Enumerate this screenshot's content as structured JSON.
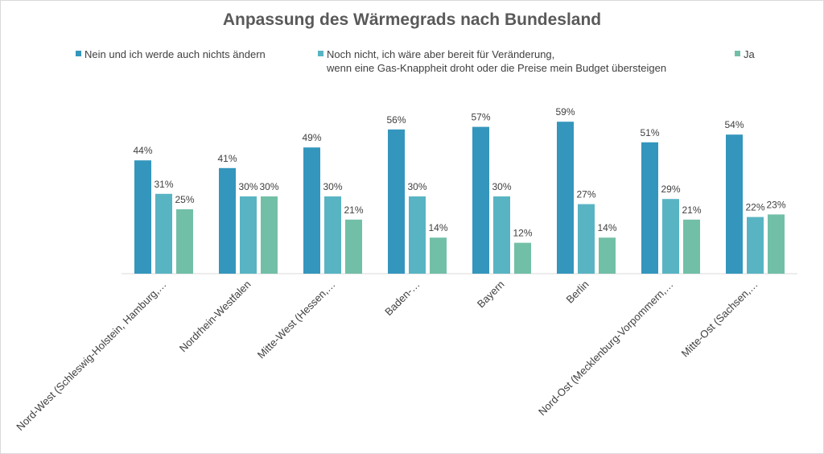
{
  "chart_data": {
    "type": "bar",
    "title": "Anpassung des Wärmegrads nach Bundesland",
    "categories": [
      "Nord-West (Schleswig-Holstein, Hamburg,…",
      "Nordrhein-Westfalen",
      "Mitte-West (Hessen,…",
      "Baden-…",
      "Bayern",
      "Berlin",
      "Nord-Ost (Mecklenburg-Vorpommern,…",
      "Mitte-Ost (Sachsen,…"
    ],
    "series": [
      {
        "name": "Nein und ich werde auch nichts ändern",
        "color": "#3496bd",
        "values": [
          44,
          41,
          49,
          56,
          57,
          59,
          51,
          54
        ],
        "labels": [
          "44%",
          "41%",
          "49%",
          "56%",
          "57%",
          "59%",
          "51%",
          "54%"
        ]
      },
      {
        "name": "Noch nicht, ich wäre aber bereit für Veränderung,\nwenn eine Gas-Knappheit droht oder die Preise mein Budget übersteigen",
        "color": "#58b4c3",
        "values": [
          31,
          30,
          30,
          30,
          30,
          27,
          29,
          22
        ],
        "labels": [
          "31%",
          "30%",
          "30%",
          "30%",
          "30%",
          "27%",
          "29%",
          "22%"
        ]
      },
      {
        "name": "Ja",
        "color": "#72bfa7",
        "values": [
          25,
          30,
          21,
          14,
          12,
          14,
          21,
          23
        ],
        "labels": [
          "25%",
          "30%",
          "21%",
          "14%",
          "12%",
          "14%",
          "21%",
          "23%"
        ]
      }
    ],
    "legend_position": "top",
    "gridlines": false,
    "ylim": [
      0,
      65
    ]
  }
}
